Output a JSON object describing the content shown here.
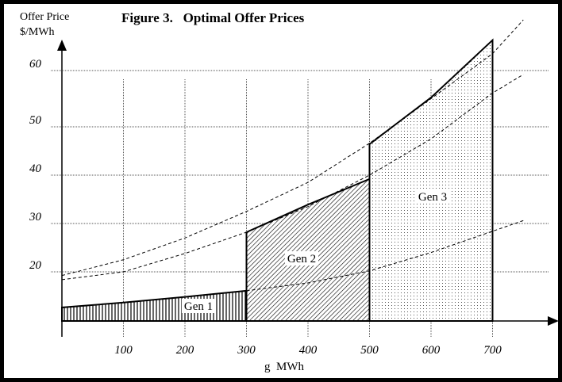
{
  "chart_data": {
    "type": "area",
    "title": "Figure 3.   Optimal Offer Prices",
    "ylabel_line1": "Offer Price",
    "ylabel_line2": "$/MWh",
    "xlabel": "g  MWh",
    "xlim": [
      0,
      750
    ],
    "ylim": [
      0,
      65
    ],
    "grid": true,
    "x_ticks": [
      100,
      200,
      300,
      400,
      500,
      600,
      700
    ],
    "x_tick_labels": [
      "100",
      "200",
      "300",
      "400",
      "500",
      "600",
      "700"
    ],
    "y_ticks": [
      20,
      30,
      40,
      50,
      60
    ],
    "y_tick_labels": [
      "20",
      "30",
      "40",
      "50",
      "60"
    ],
    "series": [
      {
        "name": "Gen 1",
        "label": "Gen 1",
        "fill": "vertical-hatch",
        "x": [
          0,
          100,
          200,
          300
        ],
        "y": [
          5.5,
          7.5,
          9.8,
          12.3
        ]
      },
      {
        "name": "Gen 2",
        "label": "Gen 2",
        "fill": "diagonal-hatch",
        "x": [
          300,
          400,
          500
        ],
        "y": [
          28.2,
          33.9,
          39.2
        ]
      },
      {
        "name": "Gen 3",
        "label": "Gen 3",
        "fill": "dots",
        "x": [
          500,
          600,
          700
        ],
        "y": [
          46.4,
          55.2,
          65.4
        ]
      }
    ],
    "dashed_curves": [
      {
        "name": "upper",
        "x": [
          0,
          100,
          200,
          300,
          400,
          500,
          600,
          700,
          750
        ],
        "y": [
          18.5,
          22.5,
          27,
          32.5,
          38.5,
          46.6,
          55,
          63,
          69
        ]
      },
      {
        "name": "middle",
        "x": [
          0,
          100,
          200,
          300,
          400,
          500,
          600,
          700,
          750
        ],
        "y": [
          16.8,
          20,
          23.8,
          28.2,
          33.5,
          40,
          47.5,
          56,
          59.3
        ]
      },
      {
        "name": "lower",
        "x": [
          300,
          400,
          500,
          600,
          700,
          750
        ],
        "y": [
          12.3,
          15.5,
          20.2,
          24,
          28.4,
          30.6
        ]
      }
    ]
  }
}
